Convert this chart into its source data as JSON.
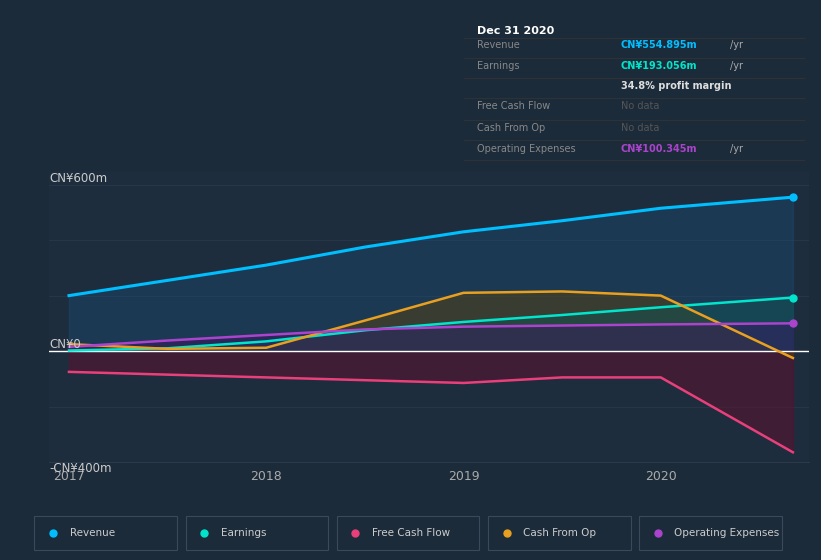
{
  "bg_color": "#1c2b3a",
  "plot_bg_color": "#1e2d3d",
  "grid_color": "#2a3a4a",
  "zero_line_color": "#ffffff",
  "revenue_x": [
    2017,
    2017.5,
    2018,
    2018.5,
    2019,
    2019.5,
    2020,
    2020.67
  ],
  "revenue_y": [
    200,
    255,
    310,
    375,
    430,
    470,
    515,
    555
  ],
  "revenue_color": "#00bfff",
  "earnings_x": [
    2017,
    2017.5,
    2018,
    2018.5,
    2019,
    2019.5,
    2020,
    2020.67
  ],
  "earnings_y": [
    2,
    10,
    35,
    75,
    105,
    130,
    158,
    193
  ],
  "earnings_color": "#00e5cc",
  "fcf_x": [
    2017,
    2017.5,
    2018,
    2018.5,
    2019,
    2019.5,
    2020,
    2020.67
  ],
  "fcf_y": [
    -75,
    -85,
    -95,
    -105,
    -115,
    -95,
    -95,
    -365
  ],
  "fcf_color": "#e8407a",
  "cashfromop_x": [
    2017,
    2017.5,
    2018,
    2018.5,
    2019,
    2019.5,
    2020,
    2020.67
  ],
  "cashfromop_y": [
    25,
    8,
    12,
    110,
    210,
    215,
    200,
    -25
  ],
  "cashfromop_color": "#e8a020",
  "opex_x": [
    2017,
    2017.5,
    2018,
    2018.5,
    2019,
    2019.5,
    2020,
    2020.67
  ],
  "opex_y": [
    15,
    38,
    58,
    78,
    88,
    92,
    96,
    100
  ],
  "opex_color": "#aa44cc",
  "ylim": [
    -400,
    650
  ],
  "xlim": [
    2016.9,
    2020.75
  ],
  "xticks": [
    2017,
    2018,
    2019,
    2020
  ],
  "xtick_labels": [
    "2017",
    "2018",
    "2019",
    "2020"
  ],
  "info_box": {
    "date": "Dec 31 2020",
    "rows": [
      {
        "label": "Revenue",
        "value": "CN¥554.895m",
        "unit": "/yr",
        "value_color": "#00bfff",
        "no_data": false
      },
      {
        "label": "Earnings",
        "value": "CN¥193.056m",
        "unit": "/yr",
        "value_color": "#00e5cc",
        "no_data": false
      },
      {
        "label": "",
        "value": "34.8% profit margin",
        "unit": "",
        "value_color": "#dddddd",
        "no_data": false
      },
      {
        "label": "Free Cash Flow",
        "value": "No data",
        "unit": "",
        "value_color": "#666666",
        "no_data": true
      },
      {
        "label": "Cash From Op",
        "value": "No data",
        "unit": "",
        "value_color": "#666666",
        "no_data": true
      },
      {
        "label": "Operating Expenses",
        "value": "CN¥100.345m",
        "unit": "/yr",
        "value_color": "#aa44cc",
        "no_data": false
      }
    ]
  },
  "legend": [
    {
      "label": "Revenue",
      "color": "#00bfff"
    },
    {
      "label": "Earnings",
      "color": "#00e5cc"
    },
    {
      "label": "Free Cash Flow",
      "color": "#e8407a"
    },
    {
      "label": "Cash From Op",
      "color": "#e8a020"
    },
    {
      "label": "Operating Expenses",
      "color": "#aa44cc"
    }
  ]
}
